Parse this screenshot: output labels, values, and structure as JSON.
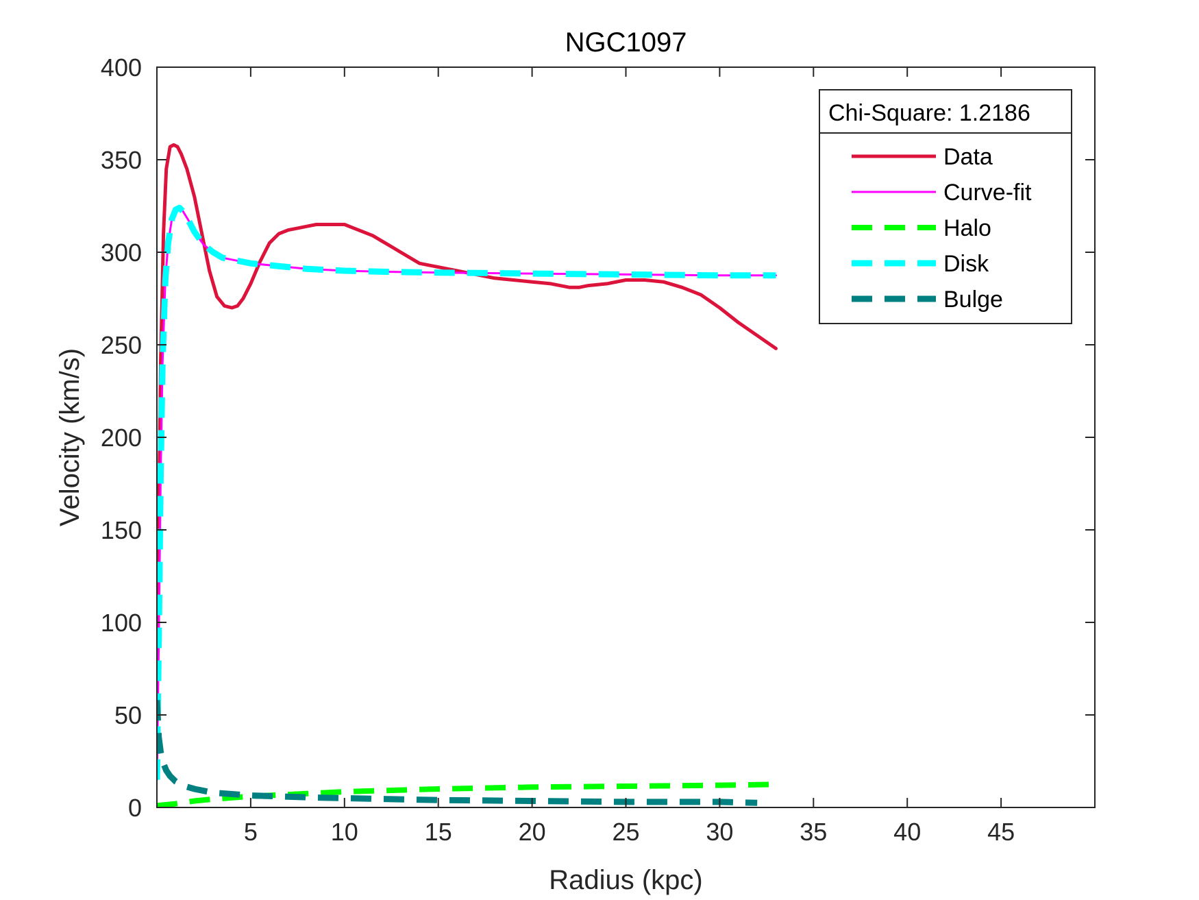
{
  "chart_data": {
    "type": "line",
    "title": "NGC1097",
    "xlabel": "Radius (kpc)",
    "ylabel": "Velocity (km/s)",
    "xlim": [
      0,
      50
    ],
    "ylim": [
      0,
      400
    ],
    "xticks": [
      5,
      10,
      15,
      20,
      25,
      30,
      35,
      40,
      45
    ],
    "yticks": [
      0,
      50,
      100,
      150,
      200,
      250,
      300,
      350,
      400
    ],
    "grid": false,
    "legend": {
      "position": "top-right",
      "header": "Chi-Square: 1.2186"
    },
    "series": [
      {
        "name": "Data",
        "color": "#dc143c",
        "style": "solid-thick",
        "x": [
          0.0,
          0.1,
          0.2,
          0.35,
          0.5,
          0.7,
          0.9,
          1.1,
          1.3,
          1.6,
          2.0,
          2.4,
          2.8,
          3.2,
          3.6,
          4.0,
          4.3,
          4.6,
          5.0,
          5.5,
          6.0,
          6.5,
          7.0,
          7.5,
          8.0,
          8.5,
          9.0,
          9.5,
          10.0,
          10.5,
          11.0,
          11.5,
          12.0,
          12.5,
          13.0,
          13.5,
          14.0,
          14.5,
          15.0,
          15.5,
          16.0,
          17.0,
          18.0,
          19.0,
          20.0,
          21.0,
          22.0,
          22.5,
          23.0,
          24.0,
          25.0,
          26.0,
          27.0,
          28.0,
          29.0,
          30.0,
          31.0,
          32.0,
          33.0
        ],
        "y": [
          45,
          150,
          240,
          310,
          345,
          357,
          358,
          357,
          353,
          345,
          330,
          310,
          290,
          276,
          271,
          270,
          271,
          275,
          283,
          295,
          305,
          310,
          312,
          313,
          314,
          315,
          315,
          315,
          315,
          313,
          311,
          309,
          306,
          303,
          300,
          297,
          294,
          293,
          292,
          291,
          290,
          288,
          286,
          285,
          284,
          283,
          281,
          281,
          282,
          283,
          285,
          285,
          284,
          281,
          277,
          270,
          262,
          255,
          248
        ]
      },
      {
        "name": "Curve-fit",
        "color": "#ff00ff",
        "style": "solid-thin",
        "x": [
          0.0,
          0.1,
          0.2,
          0.3,
          0.45,
          0.6,
          0.8,
          1.0,
          1.2,
          1.4,
          1.7,
          2.0,
          2.5,
          3.0,
          3.5,
          4.0,
          5.0,
          6.0,
          7.0,
          8.0,
          10.0,
          12.0,
          15.0,
          20.0,
          25.0,
          30.0,
          33.0
        ],
        "y": [
          15,
          90,
          180,
          240,
          285,
          305,
          318,
          323,
          324,
          322,
          317,
          311,
          304,
          300,
          297,
          296,
          294,
          293,
          292,
          291,
          290,
          289.5,
          289,
          288.5,
          288,
          287.5,
          287.5
        ]
      },
      {
        "name": "Halo",
        "color": "#00ff00",
        "style": "dashed",
        "x": [
          0,
          1,
          2,
          3,
          5,
          8,
          10,
          15,
          20,
          25,
          30,
          33
        ],
        "y": [
          1,
          2,
          3.5,
          4.5,
          6,
          7.5,
          8.5,
          10,
          11,
          11.5,
          12,
          12.5
        ]
      },
      {
        "name": "Disk",
        "color": "#00ffff",
        "style": "dashed-thick",
        "x": [
          0.0,
          0.1,
          0.2,
          0.3,
          0.45,
          0.6,
          0.8,
          1.0,
          1.2,
          1.4,
          1.7,
          2.0,
          2.5,
          3.0,
          3.5,
          4.0,
          5.0,
          6.0,
          7.0,
          8.0,
          10.0,
          12.0,
          15.0,
          20.0,
          25.0,
          30.0,
          33.0
        ],
        "y": [
          15,
          90,
          180,
          240,
          285,
          305,
          318,
          323,
          324,
          322,
          317,
          311,
          304,
          300,
          297,
          296,
          294,
          293,
          292,
          291,
          290,
          289.5,
          289,
          288.5,
          288,
          287.5,
          287.5
        ]
      },
      {
        "name": "Bulge",
        "color": "#008080",
        "style": "dashed-thick",
        "x": [
          0.0,
          0.05,
          0.1,
          0.2,
          0.3,
          0.5,
          0.7,
          1.0,
          1.5,
          2.0,
          3.0,
          5.0,
          8.0,
          10.0,
          15.0,
          20.0,
          25.0,
          30.0,
          32.0
        ],
        "y": [
          58,
          48,
          38,
          30,
          25,
          20,
          17,
          14,
          11.5,
          10,
          8,
          6.5,
          5.5,
          5,
          4,
          3.5,
          3,
          3,
          2.5
        ]
      }
    ]
  }
}
